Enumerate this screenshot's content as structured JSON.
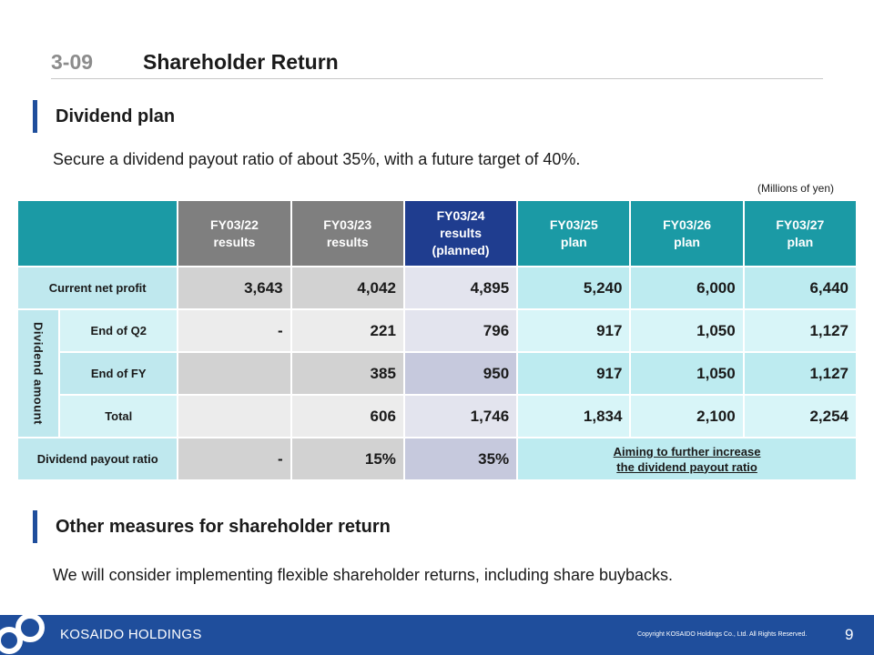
{
  "header": {
    "section_number": "3-09",
    "title": "Shareholder  Return"
  },
  "dividend_section": {
    "heading": "Dividend plan",
    "description": "Secure a dividend payout ratio of about 35%, with a future target of 40%.",
    "unit_note": "(Millions of yen)"
  },
  "table": {
    "columns": [
      [
        "FY03/22",
        "results"
      ],
      [
        "FY03/23",
        "results"
      ],
      [
        "FY03/24",
        "results",
        "(planned)"
      ],
      [
        "FY03/25",
        "plan"
      ],
      [
        "FY03/26",
        "plan"
      ],
      [
        "FY03/27",
        "plan"
      ]
    ],
    "net_profit": {
      "label": "Current net profit",
      "values": [
        "3,643",
        "4,042",
        "4,895",
        "5,240",
        "6,000",
        "6,440"
      ]
    },
    "dividend_group_label": "Dividend amount",
    "q2": {
      "label": "End of Q2",
      "values": [
        "-",
        "221",
        "796",
        "917",
        "1,050",
        "1,127"
      ]
    },
    "fy": {
      "label": "End of FY",
      "values": [
        "",
        "385",
        "950",
        "917",
        "1,050",
        "1,127"
      ]
    },
    "total": {
      "label": "Total",
      "values": [
        "",
        "606",
        "1,746",
        "1,834",
        "2,100",
        "2,254"
      ]
    },
    "payout": {
      "label": "Dividend payout  ratio",
      "values": [
        "-",
        "15%",
        "35%"
      ]
    },
    "aim_note": [
      "Aiming to further increase",
      "the dividend payout ratio"
    ]
  },
  "other_section": {
    "heading": "Other measures for shareholder return",
    "description": "We will consider implementing  flexible shareholder returns, including  share buybacks."
  },
  "footer": {
    "brand": "KOSAIDO HOLDINGS",
    "copyright": "Copyright   KOSAIDO Holdings Co., Ltd.  All Rights Reserved.",
    "page_number": "9"
  },
  "colors": {
    "brand_blue": "#1f4e9c",
    "teal": "#1b9aa5",
    "navy": "#1f3d8f",
    "gray_header": "#7f7f7f"
  }
}
